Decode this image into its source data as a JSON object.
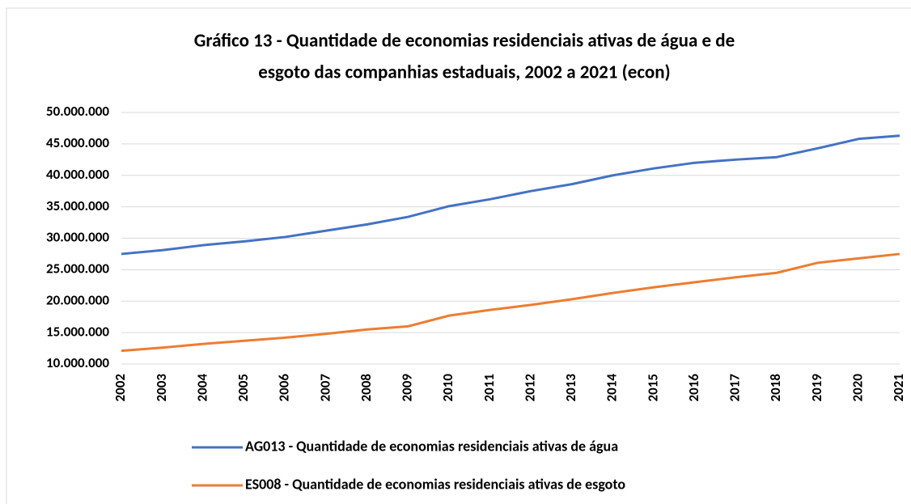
{
  "chart_data": {
    "type": "line",
    "title": [
      "Gráfico 13 - Quantidade de economias residenciais ativas de água e de",
      "esgoto das companhias estaduais, 2002 a 2021 (econ)"
    ],
    "categories": [
      "2002",
      "2003",
      "2004",
      "2005",
      "2006",
      "2007",
      "2008",
      "2009",
      "2010",
      "2011",
      "2012",
      "2013",
      "2014",
      "2015",
      "2016",
      "2017",
      "2018",
      "2019",
      "2020",
      "2021"
    ],
    "series": [
      {
        "name": "AG013 - Quantidade de economias residenciais ativas de água",
        "color": "#4472c4",
        "values": [
          27500000,
          28100000,
          28900000,
          29500000,
          30200000,
          31200000,
          32200000,
          33400000,
          35100000,
          36200000,
          37500000,
          38600000,
          40000000,
          41100000,
          42000000,
          42500000,
          42900000,
          44300000,
          45800000,
          46300000
        ]
      },
      {
        "name": "ES008 - Quantidade de economias residenciais ativas de esgoto",
        "color": "#ed7d31",
        "values": [
          12100000,
          12600000,
          13200000,
          13700000,
          14200000,
          14800000,
          15500000,
          16000000,
          17700000,
          18600000,
          19400000,
          20300000,
          21300000,
          22200000,
          23000000,
          23800000,
          24500000,
          26100000,
          26800000,
          27500000
        ]
      }
    ],
    "ylim": [
      10000000,
      50000000
    ],
    "yticks": [
      {
        "value": 10000000,
        "label": "10.000.000"
      },
      {
        "value": 15000000,
        "label": "15.000.000"
      },
      {
        "value": 20000000,
        "label": "20.000.000"
      },
      {
        "value": 25000000,
        "label": "25.000.000"
      },
      {
        "value": 30000000,
        "label": "30.000.000"
      },
      {
        "value": 35000000,
        "label": "35.000.000"
      },
      {
        "value": 40000000,
        "label": "40.000.000"
      },
      {
        "value": 45000000,
        "label": "45.000.000"
      },
      {
        "value": 50000000,
        "label": "50.000.000"
      }
    ],
    "grid": true,
    "legend": "bottom"
  }
}
